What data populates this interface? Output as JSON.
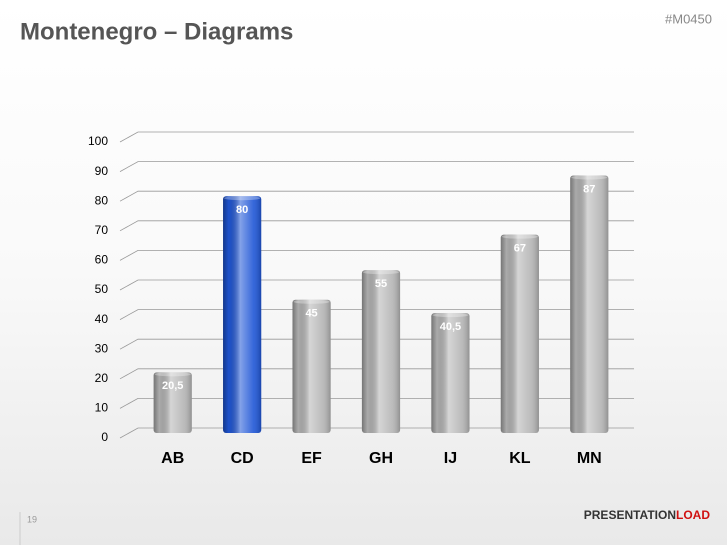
{
  "chart_data": {
    "type": "bar",
    "title": "Montenegro – Diagrams",
    "categories": [
      "AB",
      "CD",
      "EF",
      "GH",
      "IJ",
      "KL",
      "MN"
    ],
    "values": [
      20.5,
      80,
      45,
      55,
      40.5,
      67,
      87
    ],
    "value_labels": [
      "20,5",
      "80",
      "45",
      "55",
      "40,5",
      "67",
      "87"
    ],
    "colors": [
      "#b4b4b4",
      "#1f56d6",
      "#b4b4b4",
      "#b4b4b4",
      "#b4b4b4",
      "#b4b4b4",
      "#b4b4b4"
    ],
    "ylim": [
      0,
      100
    ],
    "yticks": [
      0,
      10,
      20,
      30,
      40,
      50,
      60,
      70,
      80,
      90,
      100
    ],
    "grid": true
  },
  "slide": {
    "code": "#M0450",
    "page_number": "19",
    "logo": [
      "PRESENTATION",
      "LOAD"
    ]
  }
}
